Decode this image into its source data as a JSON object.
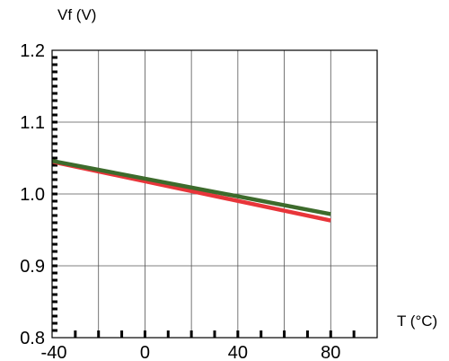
{
  "chart_data": {
    "type": "line",
    "title": "",
    "xlabel": "T (°C)",
    "ylabel": "Vf (V)",
    "xlim": [
      -40,
      100
    ],
    "ylim": [
      0.8,
      1.2
    ],
    "x_ticks": [
      -40,
      0,
      40,
      80
    ],
    "x_tick_labels": [
      "-40",
      "0",
      "40",
      "80"
    ],
    "y_ticks": [
      0.8,
      0.9,
      1.0,
      1.1,
      1.2
    ],
    "y_tick_labels": [
      "0.8",
      "0.9",
      "1.0",
      "1.1",
      "1.2"
    ],
    "grid": true,
    "series": [
      {
        "color": "#e8353a",
        "x": [
          -40,
          80
        ],
        "y": [
          1.045,
          0.963
        ]
      },
      {
        "color": "#3d6b2c",
        "x": [
          -40,
          80
        ],
        "y": [
          1.046,
          0.972
        ]
      }
    ]
  }
}
